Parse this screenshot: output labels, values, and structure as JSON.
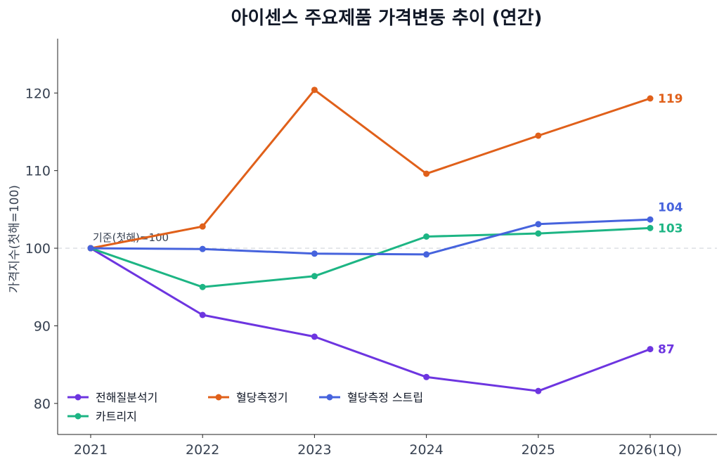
{
  "chart_data": {
    "type": "line",
    "title": "아이센스 주요제품 가격변동 추이 (연간)",
    "ylabel": "가격지수(첫해=100)",
    "xlabel": "",
    "categories": [
      "2021",
      "2022",
      "2023",
      "2024",
      "2025",
      "2026(1Q)"
    ],
    "ylim": [
      76,
      127
    ],
    "yticks": [
      80,
      90,
      100,
      110,
      120
    ],
    "reference_line": {
      "value": 100,
      "label": "기준(첫해)=100"
    },
    "legend_position": "lower-left",
    "grid": false,
    "series": [
      {
        "name": "전해질분석기",
        "color": "#6d35e0",
        "values": [
          100,
          91.4,
          88.6,
          83.4,
          81.6,
          87.0
        ],
        "end_label": "87"
      },
      {
        "name": "카트리지",
        "color": "#1db584",
        "values": [
          100,
          95.0,
          96.4,
          101.5,
          101.9,
          102.6
        ],
        "end_label": "103"
      },
      {
        "name": "혈당측정기",
        "color": "#e0601a",
        "values": [
          100,
          102.8,
          120.4,
          109.6,
          114.5,
          119.3
        ],
        "end_label": "119"
      },
      {
        "name": "혈당측정 스트립",
        "color": "#4663dd",
        "values": [
          100,
          99.9,
          99.3,
          99.2,
          103.1,
          103.7
        ],
        "end_label": "104"
      }
    ]
  }
}
